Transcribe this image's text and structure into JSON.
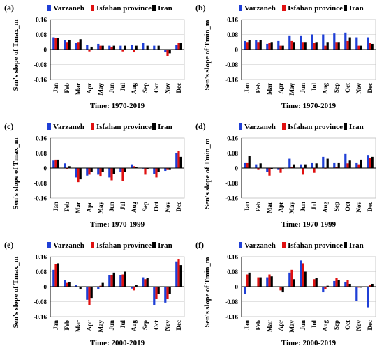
{
  "colors": {
    "Varzaneh": "#1f3fd6",
    "Isfahan province": "#e01010",
    "Iran": "#000000"
  },
  "chart_data": [
    {
      "panel": "(a)",
      "type": "bar",
      "ylabel": "Sen's slope of Tmax_m",
      "xlabel": "Time: 1970-2019",
      "ylim": [
        -0.16,
        0.16
      ],
      "yticks": [
        "0.16",
        "0.08",
        "0",
        "-0.08",
        "-0.16"
      ],
      "categories": [
        "Jan",
        "Feb",
        "Mar",
        "Apr",
        "May",
        "Jun",
        "Jul",
        "Aug",
        "Sep",
        "Oct",
        "Nov",
        "Dec"
      ],
      "series": [
        {
          "name": "Varzaneh",
          "values": [
            0.065,
            0.05,
            0.035,
            0.025,
            0.03,
            0.02,
            0.02,
            0.025,
            0.035,
            0.02,
            -0.015,
            0.025
          ]
        },
        {
          "name": "Isfahan province",
          "values": [
            0.06,
            0.04,
            0.04,
            -0.01,
            0.02,
            0.015,
            -0.01,
            -0.015,
            0.0,
            0.0,
            -0.035,
            0.035
          ]
        },
        {
          "name": "Iran",
          "values": [
            0.06,
            0.05,
            0.055,
            0.015,
            0.02,
            0.02,
            0.02,
            0.02,
            0.02,
            0.02,
            -0.02,
            0.035
          ]
        }
      ]
    },
    {
      "panel": "(b)",
      "type": "bar",
      "ylabel": "Sen's slope of Tmin_m",
      "xlabel": "Time: 1970-2019",
      "ylim": [
        -0.16,
        0.16
      ],
      "yticks": [
        "0.16",
        "0.08",
        "0",
        "-0.08",
        "-0.16"
      ],
      "categories": [
        "Jan",
        "Feb",
        "Mar",
        "Apr",
        "May",
        "Jun",
        "Jul",
        "Aug",
        "Sep",
        "Oct",
        "Nov",
        "Dec"
      ],
      "series": [
        {
          "name": "Varzaneh",
          "values": [
            0.045,
            0.05,
            0.03,
            0.045,
            0.075,
            0.075,
            0.08,
            0.08,
            0.085,
            0.09,
            0.065,
            0.065
          ]
        },
        {
          "name": "Isfahan province",
          "values": [
            0.04,
            0.04,
            0.035,
            0.02,
            0.045,
            0.04,
            0.035,
            0.02,
            0.04,
            0.045,
            0.02,
            0.035
          ]
        },
        {
          "name": "Iran",
          "values": [
            0.05,
            0.05,
            0.04,
            0.02,
            0.04,
            0.04,
            0.04,
            0.04,
            0.04,
            0.065,
            0.02,
            0.03
          ]
        }
      ]
    },
    {
      "panel": "(c)",
      "type": "bar",
      "ylabel": "Sen's slope of Tmax_m",
      "xlabel": "Time: 1970-1999",
      "ylim": [
        -0.16,
        0.16
      ],
      "yticks": [
        "0.16",
        "0.08",
        "0",
        "-0.08",
        "-0.16"
      ],
      "categories": [
        "Jan",
        "Feb",
        "Mar",
        "Apr",
        "May",
        "Jun",
        "Jul",
        "Aug",
        "Sep",
        "Oct",
        "Nov",
        "Dec"
      ],
      "series": [
        {
          "name": "Varzaneh",
          "values": [
            0.04,
            0.025,
            -0.05,
            -0.04,
            -0.035,
            -0.05,
            -0.02,
            0.02,
            0.0,
            -0.03,
            -0.015,
            0.08
          ]
        },
        {
          "name": "Isfahan province",
          "values": [
            0.045,
            -0.005,
            -0.075,
            -0.035,
            -0.045,
            -0.065,
            -0.07,
            0.01,
            -0.035,
            -0.05,
            -0.01,
            0.09
          ]
        },
        {
          "name": "Iran",
          "values": [
            0.045,
            0.01,
            -0.06,
            -0.02,
            -0.02,
            -0.03,
            -0.02,
            0.005,
            -0.005,
            -0.02,
            -0.01,
            0.06
          ]
        }
      ]
    },
    {
      "panel": "(d)",
      "type": "bar",
      "ylabel": "Sen's slope of Tmin_m",
      "xlabel": "Time: 1970-1999",
      "ylim": [
        -0.16,
        0.16
      ],
      "yticks": [
        "0.16",
        "0.08",
        "0",
        "-0.08",
        "-0.16"
      ],
      "categories": [
        "Jan",
        "Feb",
        "Mar",
        "Apr",
        "May",
        "Jun",
        "Jul",
        "Aug",
        "Sep",
        "Oct",
        "Nov",
        "Dec"
      ],
      "series": [
        {
          "name": "Varzaneh",
          "values": [
            0.03,
            0.02,
            -0.02,
            -0.01,
            0.05,
            0.02,
            0.03,
            0.06,
            0.03,
            0.075,
            0.03,
            0.07
          ]
        },
        {
          "name": "Isfahan province",
          "values": [
            0.03,
            -0.01,
            -0.04,
            -0.025,
            0.005,
            -0.035,
            -0.025,
            0.0,
            0.005,
            0.025,
            0.02,
            0.055
          ]
        },
        {
          "name": "Iran",
          "values": [
            0.065,
            0.025,
            -0.005,
            0.0,
            0.02,
            0.02,
            0.025,
            0.05,
            0.03,
            0.04,
            0.045,
            0.06
          ]
        }
      ]
    },
    {
      "panel": "(e)",
      "type": "bar",
      "ylabel": "Sen's slope of Tmax_m",
      "xlabel": "Time: 2000-2019",
      "ylim": [
        -0.16,
        0.16
      ],
      "yticks": [
        "0.16",
        "0.08",
        "0",
        "-0.08",
        "-0.16"
      ],
      "categories": [
        "Jan",
        "Feb",
        "Mar",
        "Apr",
        "May",
        "Jun",
        "Jul",
        "Aug",
        "Sep",
        "Oct",
        "Nov",
        "Dec"
      ],
      "series": [
        {
          "name": "Varzaneh",
          "values": [
            0.09,
            0.035,
            0.01,
            -0.07,
            -0.015,
            0.06,
            0.06,
            -0.01,
            0.05,
            -0.1,
            -0.085,
            0.135
          ]
        },
        {
          "name": "Isfahan province",
          "values": [
            0.12,
            0.02,
            0.0,
            -0.1,
            0.005,
            0.06,
            0.065,
            -0.02,
            0.04,
            -0.065,
            -0.065,
            0.145
          ]
        },
        {
          "name": "Iran",
          "values": [
            0.125,
            0.025,
            -0.015,
            -0.06,
            0.02,
            0.075,
            0.08,
            0.01,
            0.045,
            -0.04,
            -0.04,
            0.115
          ]
        }
      ]
    },
    {
      "panel": "(f)",
      "type": "bar",
      "ylabel": "Sen's slope of Tmin_m",
      "xlabel": "Time: 2000-2019",
      "ylim": [
        -0.16,
        0.16
      ],
      "yticks": [
        "0.16",
        "0.08",
        "0",
        "-0.08",
        "-0.16"
      ],
      "categories": [
        "Jan",
        "Feb",
        "Mar",
        "Apr",
        "May",
        "Jun",
        "Jul",
        "Aug",
        "Sep",
        "Oct",
        "Nov",
        "Dec"
      ],
      "series": [
        {
          "name": "Varzaneh",
          "values": [
            -0.04,
            0.0,
            0.05,
            0.0,
            0.075,
            0.14,
            0.0,
            -0.03,
            0.03,
            0.025,
            -0.075,
            -0.11
          ]
        },
        {
          "name": "Isfahan province",
          "values": [
            0.065,
            0.05,
            0.065,
            -0.02,
            0.09,
            0.125,
            0.04,
            -0.015,
            0.045,
            0.035,
            -0.005,
            0.01
          ]
        },
        {
          "name": "Iran",
          "values": [
            0.075,
            0.05,
            0.055,
            -0.03,
            0.04,
            0.08,
            0.045,
            0.005,
            0.035,
            0.015,
            -0.005,
            0.015
          ]
        }
      ]
    }
  ]
}
